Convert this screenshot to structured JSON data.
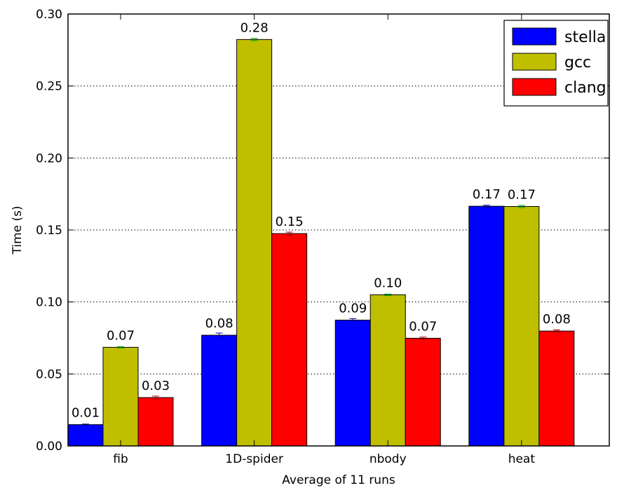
{
  "chart_data": {
    "type": "bar",
    "categories": [
      "fib",
      "1D-spider",
      "nbody",
      "heat"
    ],
    "series": [
      {
        "name": "stella",
        "color": "#0000ff",
        "values": [
          0.0148,
          0.0769,
          0.0874,
          0.1665
        ],
        "errors": [
          0.0004,
          0.0015,
          0.001,
          0.0007
        ],
        "error_color": "#0000aa",
        "labels": [
          "0.01",
          "0.08",
          "0.09",
          "0.17"
        ]
      },
      {
        "name": "gcc",
        "color": "#bfbf00",
        "values": [
          0.0685,
          0.2823,
          0.105,
          0.1663
        ],
        "errors": [
          0.0004,
          0.0008,
          0.0005,
          0.0008
        ],
        "error_color": "#00aa00",
        "labels": [
          "0.07",
          "0.28",
          "0.10",
          "0.17"
        ]
      },
      {
        "name": "clang",
        "color": "#ff0000",
        "values": [
          0.0336,
          0.1475,
          0.0748,
          0.0798
        ],
        "errors": [
          0.001,
          0.001,
          0.0008,
          0.0008
        ],
        "error_color": "#aa0000",
        "labels": [
          "0.03",
          "0.15",
          "0.07",
          "0.08"
        ]
      }
    ],
    "xlabel": "Average of 11 runs",
    "ylabel": "Time (s)",
    "ylim": [
      0,
      0.3
    ],
    "yticks": [
      0.0,
      0.05,
      0.1,
      0.15,
      0.2,
      0.25,
      0.3
    ],
    "ytick_labels": [
      "0.00",
      "0.05",
      "0.10",
      "0.15",
      "0.20",
      "0.25",
      "0.30"
    ],
    "grid": "horizontal dotted",
    "legend_position": "top-right"
  }
}
